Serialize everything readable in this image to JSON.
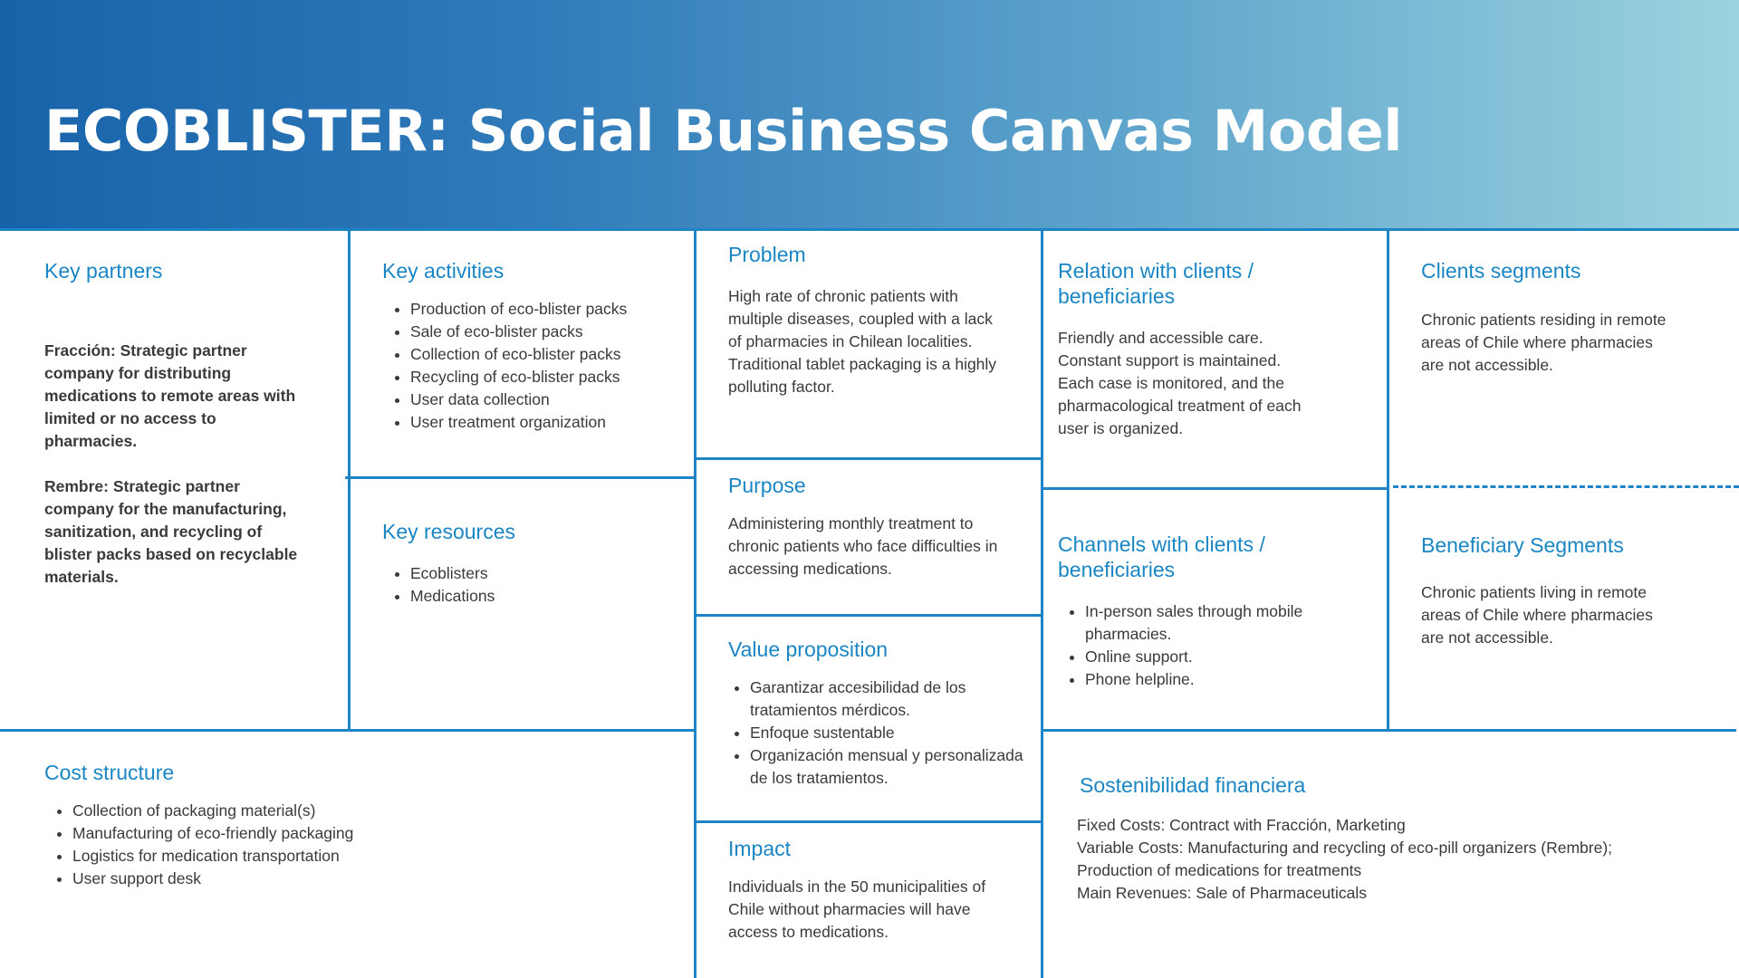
{
  "title": "ECOBLISTER: Social Business Canvas Model",
  "key_partners": {
    "heading": "Key partners",
    "paragraphs": [
      "Fracción: Strategic partner company for distributing medications to remote areas with limited or no access to pharmacies.",
      "Rembre: Strategic partner company for the manufacturing, sanitization, and recycling of blister packs based on recyclable materials."
    ]
  },
  "key_activities": {
    "heading": "Key activities",
    "items": [
      "Production of eco-blister packs",
      "Sale of eco-blister packs",
      "Collection of eco-blister packs",
      "Recycling of eco-blister packs",
      "User data collection",
      "User treatment organization"
    ]
  },
  "key_resources": {
    "heading": "Key resources",
    "items": [
      "Ecoblisters",
      "Medications"
    ]
  },
  "problem": {
    "heading": "Problem",
    "lines": [
      "High rate of chronic patients with multiple diseases, coupled with a lack of pharmacies in Chilean localities.",
      "Traditional tablet packaging is a highly polluting factor."
    ]
  },
  "purpose": {
    "heading": "Purpose",
    "text": "Administering monthly treatment to chronic patients who face difficulties in accessing medications."
  },
  "value_proposition": {
    "heading": "Value proposition",
    "items": [
      "Garantizar accesibilidad de los tratamientos mérdicos.",
      "Enfoque sustentable",
      "Organización mensual y personalizada  de los tratamientos."
    ]
  },
  "impact": {
    "heading": "Impact",
    "text": "Individuals in the 50 municipalities of Chile without pharmacies will have access to medications."
  },
  "relation": {
    "heading": "Relation with clients / beneficiaries",
    "lines": [
      "Friendly and accessible care.",
      "Constant support is maintained.",
      "Each case is monitored, and the pharmacological treatment of each user is organized."
    ]
  },
  "channels": {
    "heading": "Channels with clients / beneficiaries",
    "items": [
      "In-person sales through mobile pharmacies.",
      "Online support.",
      "Phone helpline."
    ]
  },
  "client_segments": {
    "heading": "Clients segments",
    "text": "Chronic patients residing in remote areas of Chile where pharmacies are not accessible."
  },
  "beneficiary_segments": {
    "heading": "Beneficiary Segments",
    "text": "Chronic patients living in remote areas of Chile where pharmacies are not accessible."
  },
  "cost_structure": {
    "heading": "Cost structure",
    "items": [
      "Collection of packaging material(s)",
      "Manufacturing of eco-friendly packaging",
      "Logistics for medication transportation",
      "User support desk"
    ]
  },
  "financial": {
    "heading": "Sostenibilidad financiera",
    "lines": [
      "Fixed Costs: Contract with Fracción, Marketing",
      "Variable Costs: Manufacturing and recycling of eco-pill organizers (Rembre); Production of medications for treatments",
      "Main Revenues: Sale of Pharmaceuticals"
    ]
  }
}
